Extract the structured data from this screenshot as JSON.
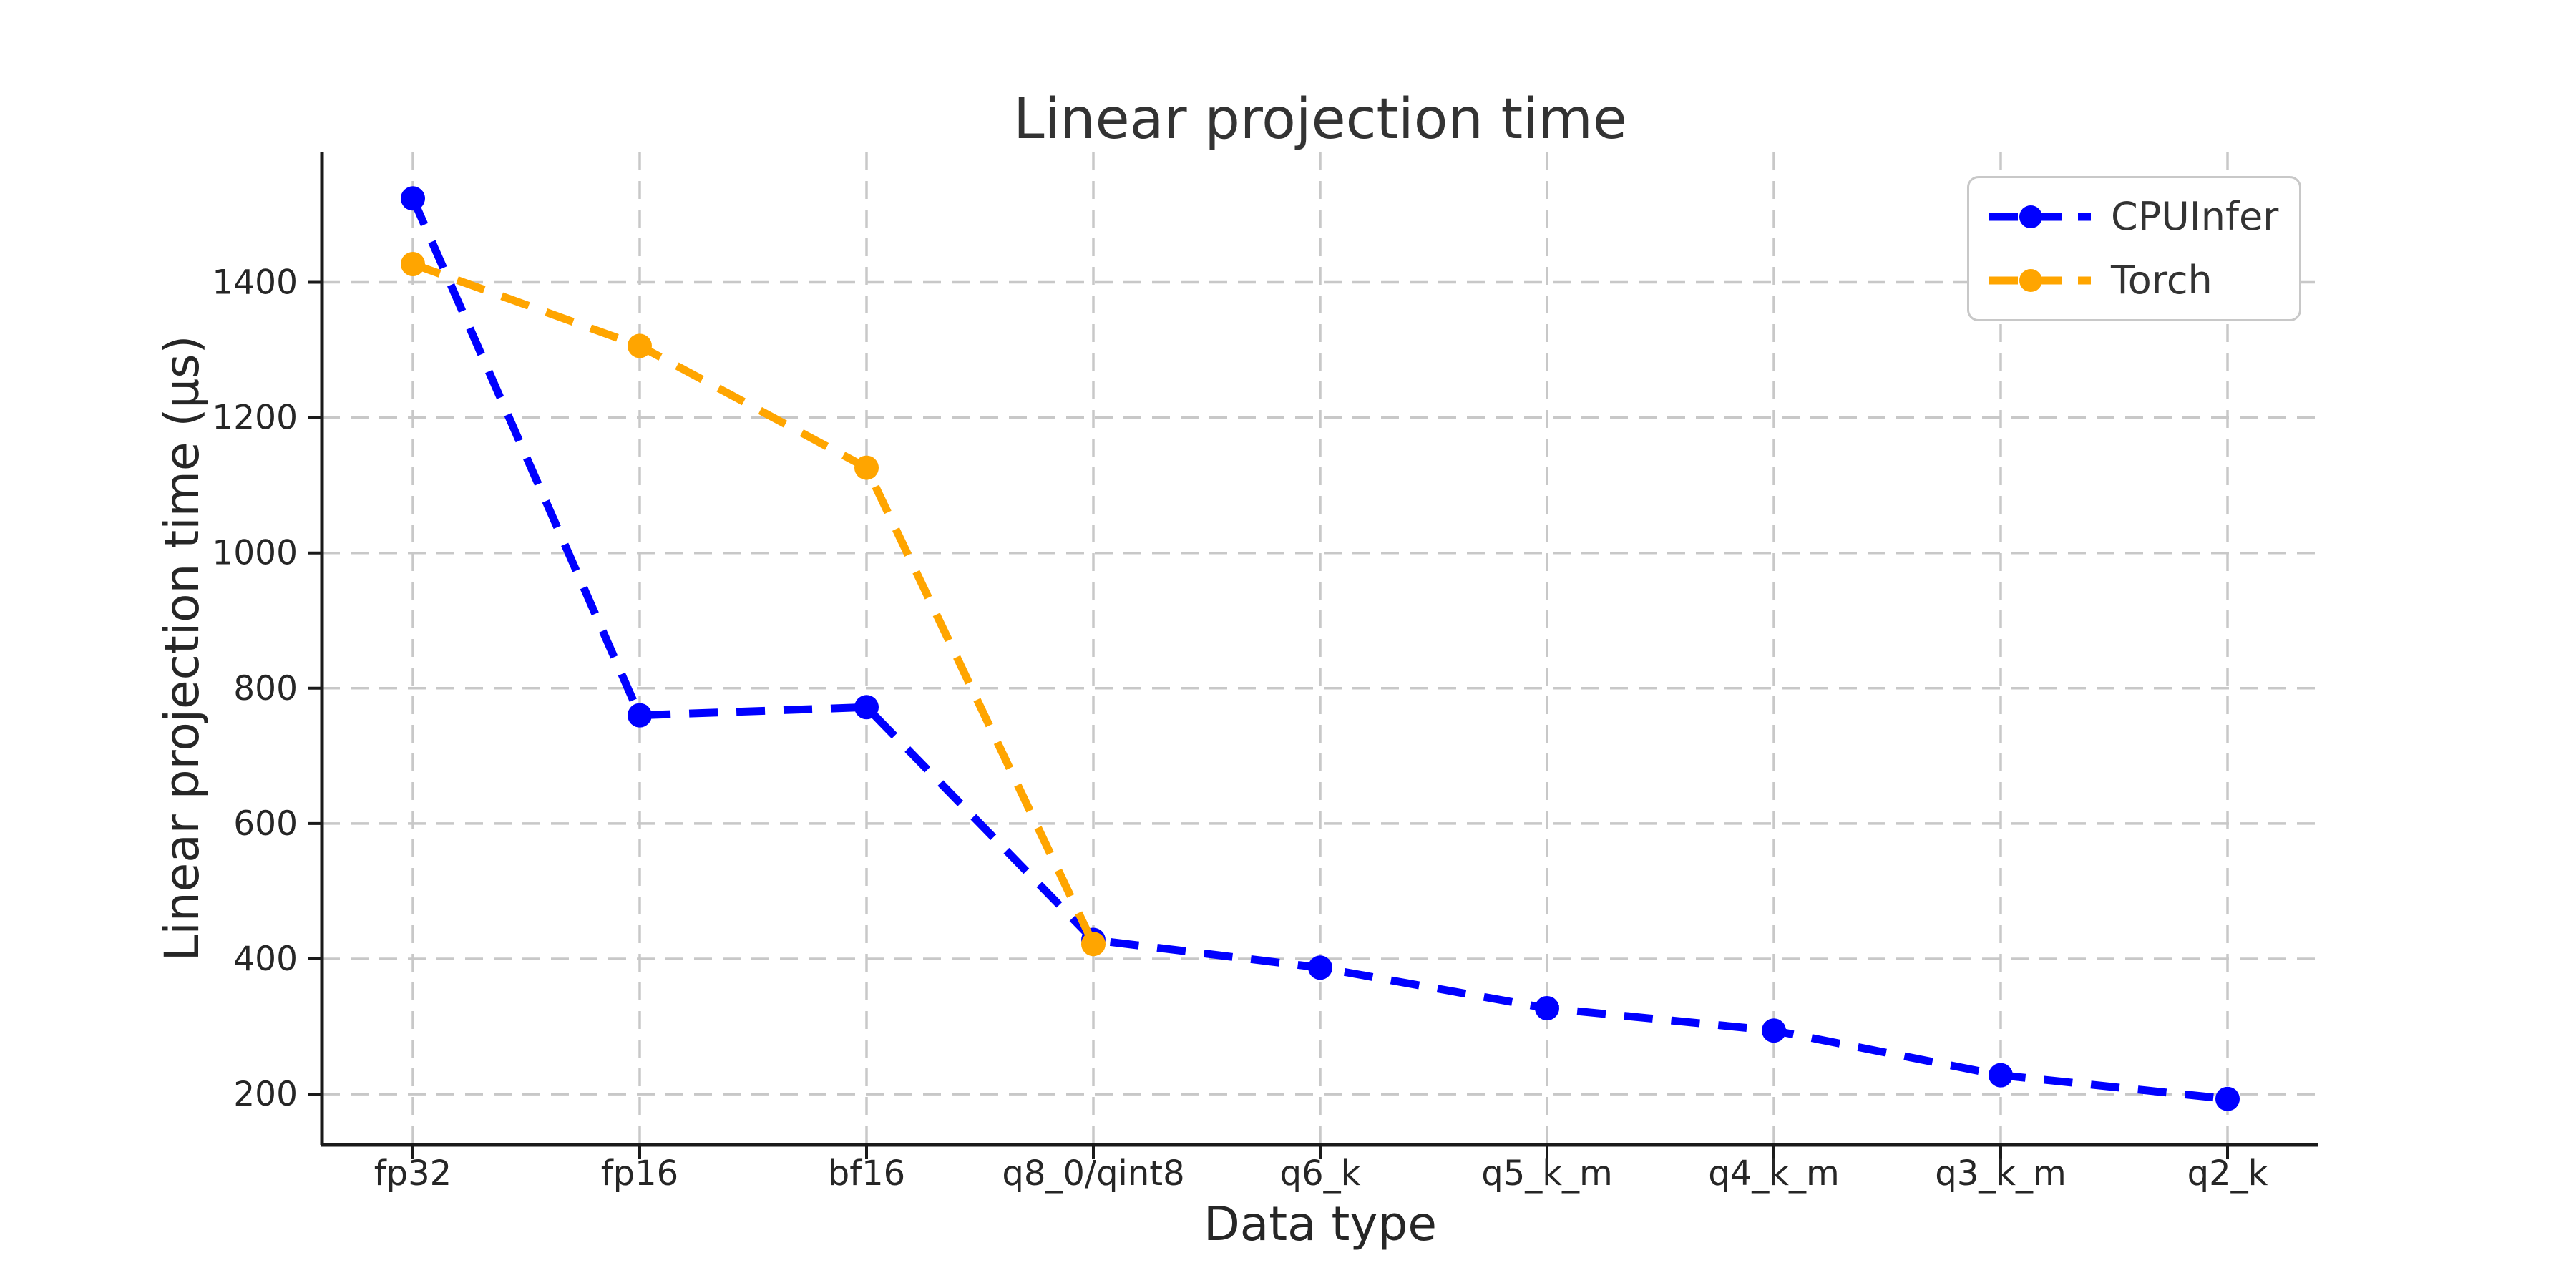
{
  "figure": {
    "background": "#ffffff"
  },
  "chart_data": {
    "type": "line",
    "title": "Linear projection time",
    "xlabel": "Data type",
    "ylabel": "Linear projection time (µs)",
    "categories": [
      "fp32",
      "fp16",
      "bf16",
      "q8_0/qint8",
      "q6_k",
      "q5_k_m",
      "q4_k_m",
      "q3_k_m",
      "q2_k"
    ],
    "series": [
      {
        "name": "CPUInfer",
        "color": "#0000ff",
        "linestyle": "dashed",
        "marker": "circle",
        "values": [
          1524,
          760,
          772,
          428,
          387,
          327,
          294,
          228,
          193
        ]
      },
      {
        "name": "Torch",
        "color": "#ffa500",
        "linestyle": "dashed",
        "marker": "circle",
        "values": [
          1427,
          1306,
          1126,
          422
        ]
      }
    ],
    "yticks": [
      200,
      400,
      600,
      800,
      1000,
      1200,
      1400
    ],
    "ylim": [
      125,
      1592
    ],
    "grid": true,
    "grid_style": "dashed",
    "legend_position": "upper right",
    "colors": {
      "grid": "#c8c8c8",
      "spine": "#1a1a1a",
      "title_text": "#333333",
      "tick_text": "#262626"
    }
  }
}
